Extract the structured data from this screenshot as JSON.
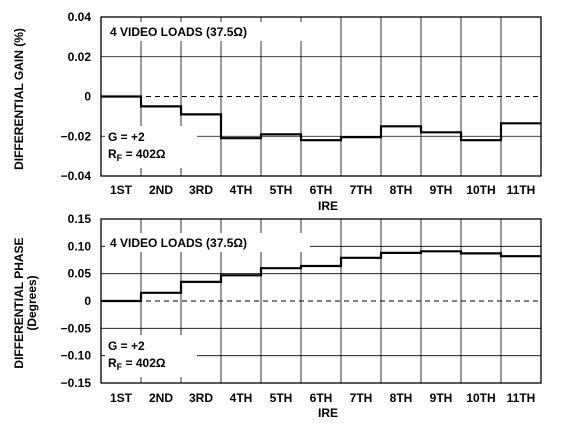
{
  "chart_data": [
    {
      "type": "line",
      "step": true,
      "ylabel": "DIFFERENTIAL GAIN (%)",
      "xlabel": "IRE",
      "categories": [
        "1ST",
        "2ND",
        "3RD",
        "4TH",
        "5TH",
        "6TH",
        "7TH",
        "8TH",
        "9TH",
        "10TH",
        "11TH"
      ],
      "values": [
        0.0,
        -0.005,
        -0.009,
        -0.021,
        -0.019,
        -0.022,
        -0.0205,
        -0.015,
        -0.018,
        -0.022,
        -0.0135
      ],
      "ylim": [
        -0.04,
        0.04
      ],
      "yticks": [
        "0.04",
        "0.02",
        "0",
        "−0.02",
        "−0.04"
      ],
      "ytick_values": [
        0.04,
        0.02,
        0,
        -0.02,
        -0.04
      ],
      "grid": true,
      "zero_line": "dashed",
      "annotations": {
        "loads": "4 VIDEO LOADS (37.5Ω)",
        "gain": "G = +2",
        "rf_main": "R",
        "rf_sub": "F",
        "rf_value": " = 402Ω"
      }
    },
    {
      "type": "line",
      "step": true,
      "ylabel": "DIFFERENTIAL PHASE",
      "ylabel_unit": "(Degrees)",
      "xlabel": "IRE",
      "categories": [
        "1ST",
        "2ND",
        "3RD",
        "4TH",
        "5TH",
        "6TH",
        "7TH",
        "8TH",
        "9TH",
        "10TH",
        "11TH"
      ],
      "values": [
        0.0,
        0.015,
        0.035,
        0.047,
        0.06,
        0.064,
        0.079,
        0.088,
        0.091,
        0.087,
        0.082
      ],
      "ylim": [
        -0.15,
        0.15
      ],
      "yticks": [
        "0.15",
        "0.10",
        "0.05",
        "0",
        "−0.05",
        "−0.10",
        "−0.15"
      ],
      "ytick_values": [
        0.15,
        0.1,
        0.05,
        0,
        -0.05,
        -0.1,
        -0.15
      ],
      "grid": true,
      "zero_line": "dashed",
      "annotations": {
        "loads": "4 VIDEO LOADS (37.5Ω)",
        "gain": "G = +2",
        "rf_main": "R",
        "rf_sub": "F",
        "rf_value": " = 402Ω"
      }
    }
  ]
}
